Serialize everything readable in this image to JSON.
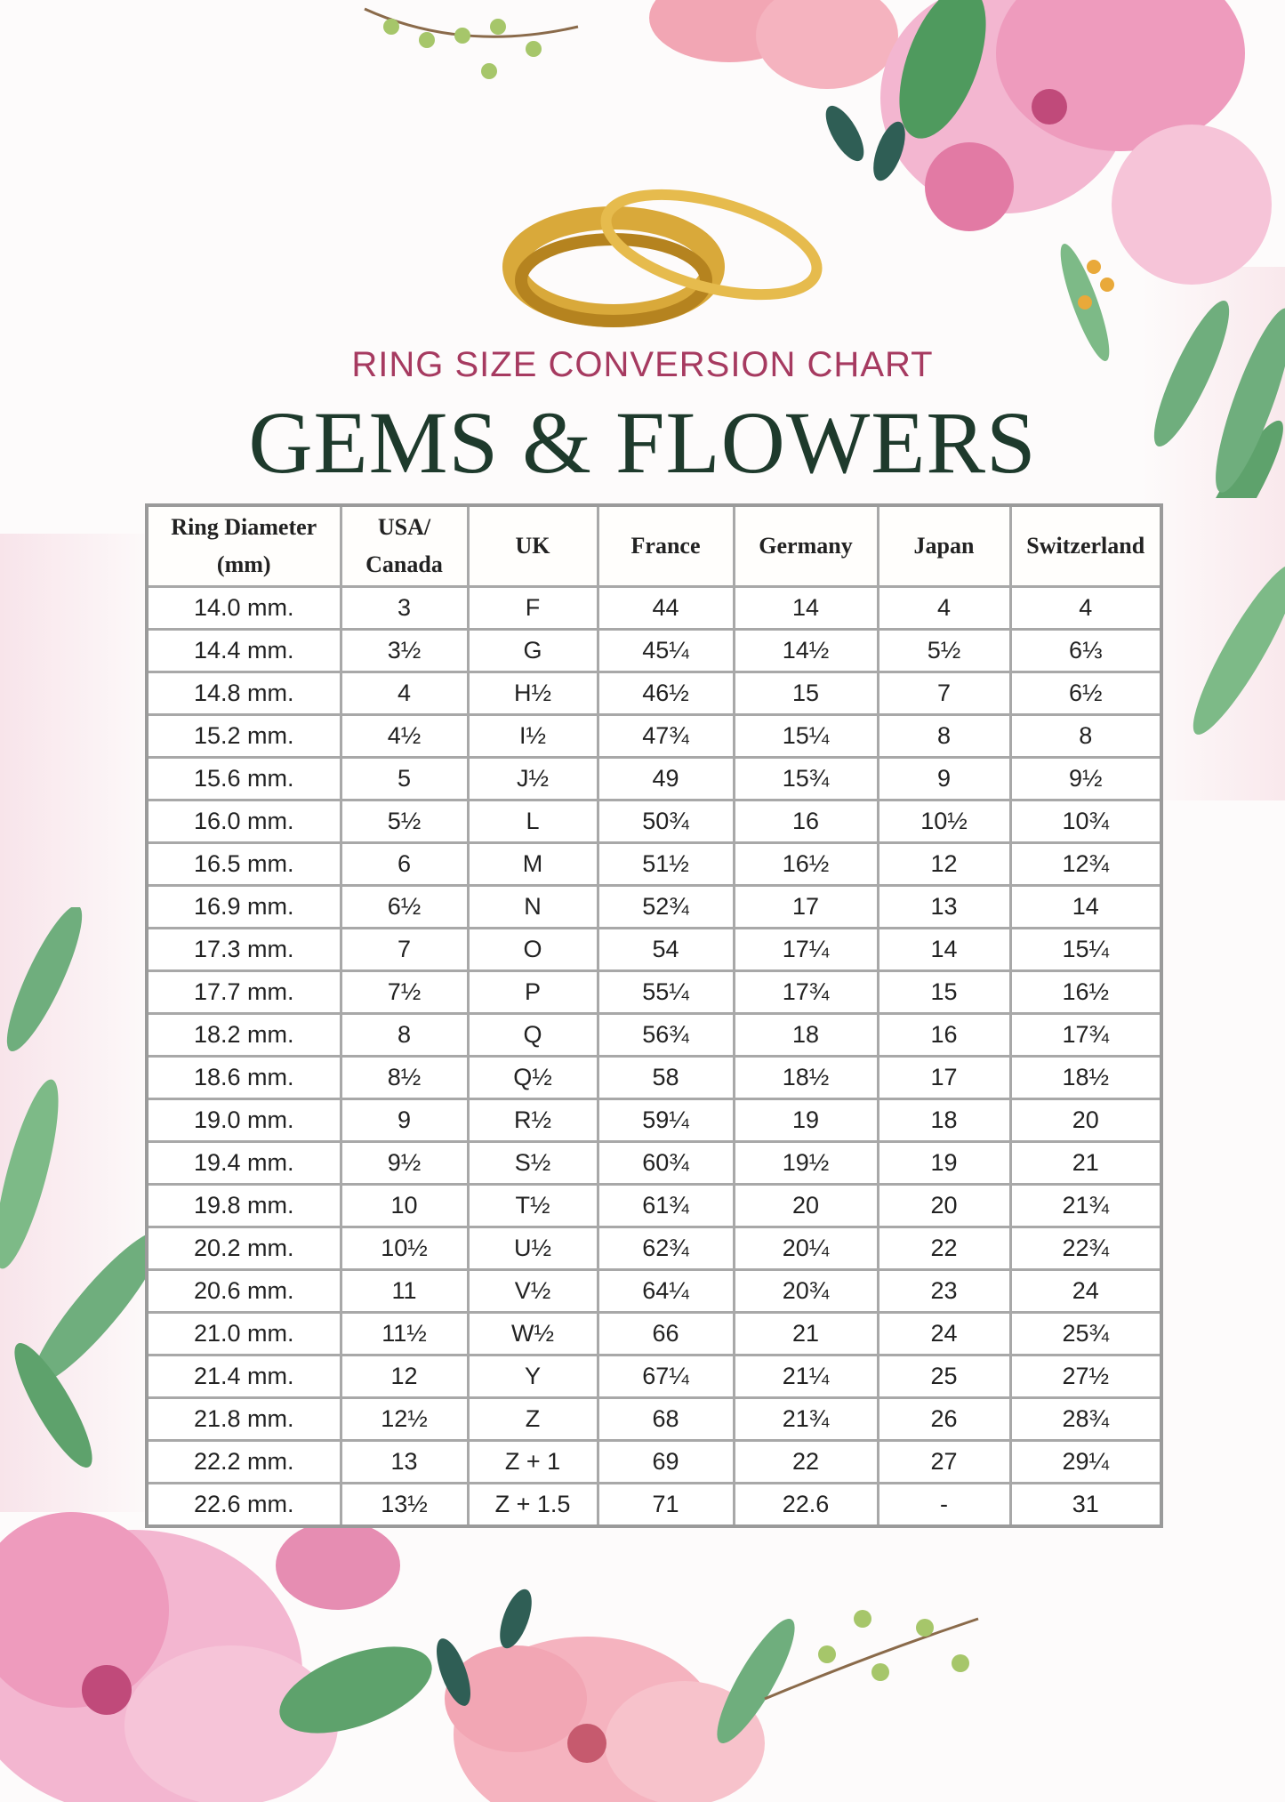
{
  "header": {
    "subtitle": "RING SIZE CONVERSION CHART",
    "title": "GEMS & FLOWERS"
  },
  "colors": {
    "subtitle": "#a63a60",
    "title": "#1e3a2c",
    "grid": "#a8a8a8",
    "ring_gold": "#d9a93a",
    "flower_pink": "#ee9bbd",
    "leaf_green": "#6fae7d"
  },
  "table": {
    "headers": [
      {
        "line1": "Ring Diameter",
        "line2": "(mm)"
      },
      {
        "line1": "USA/",
        "line2": "Canada"
      },
      {
        "line1": "UK",
        "line2": ""
      },
      {
        "line1": "France",
        "line2": ""
      },
      {
        "line1": "Germany",
        "line2": ""
      },
      {
        "line1": "Japan",
        "line2": ""
      },
      {
        "line1": "Switzerland",
        "line2": ""
      }
    ],
    "rows": [
      [
        "14.0 mm.",
        "3",
        "F",
        "44",
        "14",
        "4",
        "4"
      ],
      [
        "14.4 mm.",
        "3½",
        "G",
        "45¼",
        "14½",
        "5½",
        "6⅓"
      ],
      [
        "14.8 mm.",
        "4",
        "H½",
        "46½",
        "15",
        "7",
        "6½"
      ],
      [
        "15.2 mm.",
        "4½",
        "I½",
        "47¾",
        "15¼",
        "8",
        "8"
      ],
      [
        "15.6 mm.",
        "5",
        "J½",
        "49",
        "15¾",
        "9",
        "9½"
      ],
      [
        "16.0 mm.",
        "5½",
        "L",
        "50¾",
        "16",
        "10½",
        "10¾"
      ],
      [
        "16.5 mm.",
        "6",
        "M",
        "51½",
        "16½",
        "12",
        "12¾"
      ],
      [
        "16.9 mm.",
        "6½",
        "N",
        "52¾",
        "17",
        "13",
        "14"
      ],
      [
        "17.3 mm.",
        "7",
        "O",
        "54",
        "17¼",
        "14",
        "15¼"
      ],
      [
        "17.7 mm.",
        "7½",
        "P",
        "55¼",
        "17¾",
        "15",
        "16½"
      ],
      [
        "18.2 mm.",
        "8",
        "Q",
        "56¾",
        "18",
        "16",
        "17¾"
      ],
      [
        "18.6 mm.",
        "8½",
        "Q½",
        "58",
        "18½",
        "17",
        "18½"
      ],
      [
        "19.0 mm.",
        "9",
        "R½",
        "59¼",
        "19",
        "18",
        "20"
      ],
      [
        "19.4 mm.",
        "9½",
        "S½",
        "60¾",
        "19½",
        "19",
        "21"
      ],
      [
        "19.8 mm.",
        "10",
        "T½",
        "61¾",
        "20",
        "20",
        "21¾"
      ],
      [
        "20.2 mm.",
        "10½",
        "U½",
        "62¾",
        "20¼",
        "22",
        "22¾"
      ],
      [
        "20.6 mm.",
        "11",
        "V½",
        "64¼",
        "20¾",
        "23",
        "24"
      ],
      [
        "21.0 mm.",
        "11½",
        "W½",
        "66",
        "21",
        "24",
        "25¾"
      ],
      [
        "21.4 mm.",
        "12",
        "Y",
        "67¼",
        "21¼",
        "25",
        "27½"
      ],
      [
        "21.8 mm.",
        "12½",
        "Z",
        "68",
        "21¾",
        "26",
        "28¾"
      ],
      [
        "22.2 mm.",
        "13",
        "Z + 1",
        "69",
        "22",
        "27",
        "29¼"
      ],
      [
        "22.6 mm.",
        "13½",
        "Z + 1.5",
        "71",
        "22.6",
        "-",
        "31"
      ]
    ]
  }
}
